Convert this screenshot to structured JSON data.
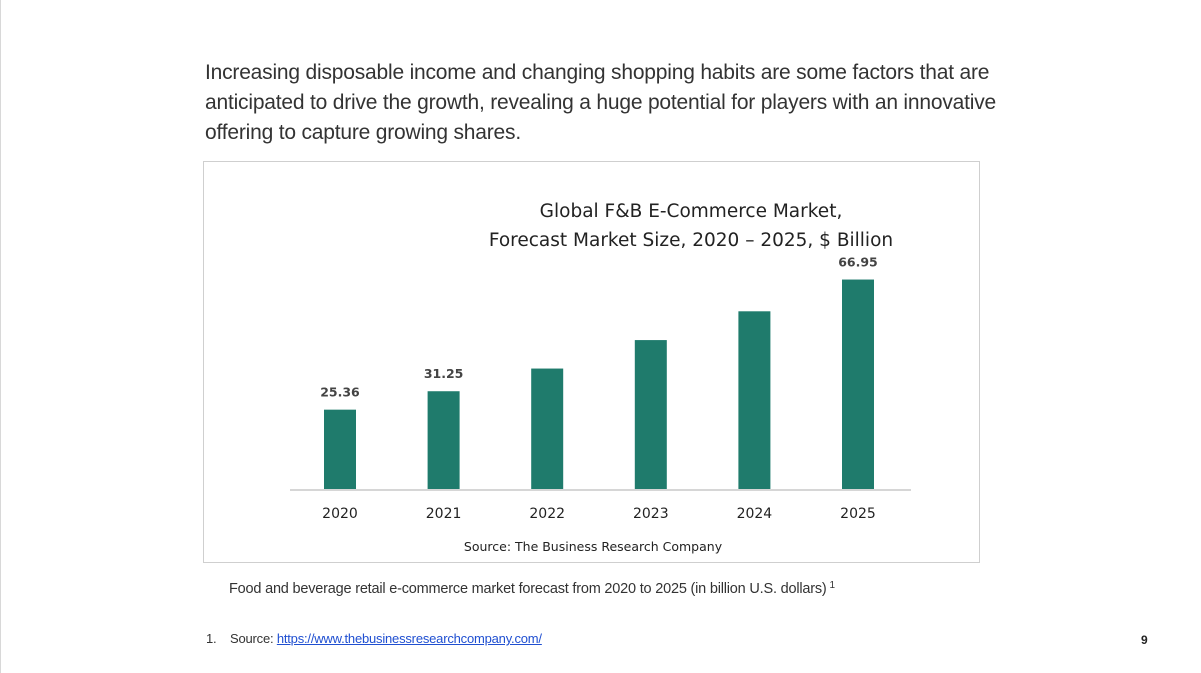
{
  "intro_text": "Increasing disposable income and changing  shopping habits are some factors that are  anticipated to drive the growth, revealing a  huge potential for players with an innovative  offering to capture growing shares.",
  "chart_data": {
    "type": "bar",
    "title": "Global F&B E-Commerce Market,",
    "subtitle": "Forecast Market Size, 2020 – 2025, $ Billion",
    "categories": [
      "2020",
      "2021",
      "2022",
      "2023",
      "2024",
      "2025"
    ],
    "values": [
      25.36,
      31.25,
      38.5,
      47.6,
      56.8,
      66.95
    ],
    "data_labels": [
      "25.36",
      "31.25",
      "",
      "",
      "",
      "66.95"
    ],
    "xlabel": "",
    "ylabel": "",
    "ylim": [
      0,
      70
    ],
    "grid": false,
    "legend": "none",
    "source": "Source: The Business Research Company",
    "bar_color": "#1f7b6c"
  },
  "caption": "Food and beverage retail e-commerce market forecast from 2020 to 2025 (in billion U.S. dollars)",
  "caption_ref": "1",
  "footnote": {
    "number": "1.",
    "label": "Source: ",
    "link_text": "https://www.thebusinessresearchcompany.com/"
  },
  "page_number": "9"
}
